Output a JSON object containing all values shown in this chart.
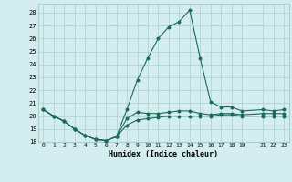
{
  "xlabel": "Humidex (Indice chaleur)",
  "ylabel": "",
  "background_color": "#d4edef",
  "grid_color": "#aacfcf",
  "line_color": "#1a6b5a",
  "xlim": [
    -0.5,
    23.5
  ],
  "ylim": [
    18.0,
    28.7
  ],
  "x_ticks": [
    0,
    1,
    2,
    3,
    4,
    5,
    6,
    7,
    8,
    9,
    10,
    11,
    12,
    13,
    14,
    15,
    16,
    17,
    18,
    19,
    21,
    22,
    23
  ],
  "y_ticks": [
    18,
    19,
    20,
    21,
    22,
    23,
    24,
    25,
    26,
    27,
    28
  ],
  "curve_max": {
    "x": [
      0,
      1,
      2,
      3,
      4,
      5,
      6,
      7,
      8,
      9,
      10,
      11,
      12,
      13,
      14,
      15,
      16,
      17,
      18,
      19,
      21,
      22,
      23
    ],
    "y": [
      20.5,
      20.0,
      19.6,
      19.0,
      18.5,
      18.2,
      18.1,
      18.4,
      20.5,
      22.8,
      24.5,
      26.0,
      26.9,
      27.3,
      28.2,
      24.5,
      21.1,
      20.7,
      20.7,
      20.4,
      20.5,
      20.4,
      20.5
    ]
  },
  "curve_min": {
    "x": [
      0,
      1,
      2,
      3,
      4,
      5,
      6,
      7,
      8,
      9,
      10,
      11,
      12,
      13,
      14,
      15,
      16,
      17,
      18,
      19,
      21,
      22,
      23
    ],
    "y": [
      20.5,
      20.0,
      19.6,
      19.0,
      18.5,
      18.2,
      18.1,
      18.4,
      19.3,
      19.7,
      19.8,
      19.9,
      20.0,
      20.0,
      20.0,
      20.0,
      20.0,
      20.1,
      20.1,
      20.0,
      20.0,
      20.0,
      20.0
    ]
  },
  "curve_mid": {
    "x": [
      0,
      1,
      2,
      3,
      4,
      5,
      6,
      7,
      8,
      9,
      10,
      11,
      12,
      13,
      14,
      15,
      16,
      17,
      18,
      19,
      21,
      22,
      23
    ],
    "y": [
      20.5,
      20.0,
      19.6,
      19.0,
      18.5,
      18.2,
      18.1,
      18.4,
      19.8,
      20.3,
      20.2,
      20.2,
      20.3,
      20.4,
      20.4,
      20.2,
      20.1,
      20.2,
      20.2,
      20.1,
      20.2,
      20.2,
      20.2
    ]
  }
}
